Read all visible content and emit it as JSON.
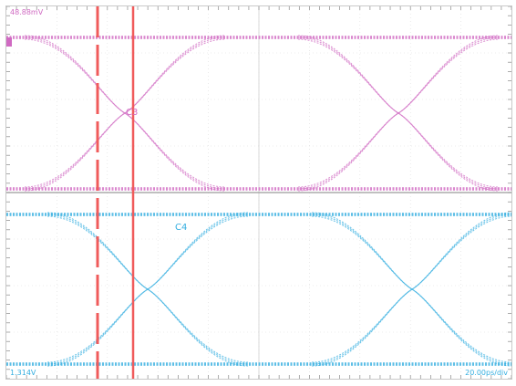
{
  "scope": {
    "top_readout": "48.88mV",
    "bottom_left_readout": "1.314V",
    "bottom_right_readout": "20.00ps/div"
  },
  "channels": [
    {
      "name": "C3",
      "color": "#d06ac2"
    },
    {
      "name": "C4",
      "color": "#33aee0"
    }
  ],
  "cursor_color": "#f05b5b"
}
